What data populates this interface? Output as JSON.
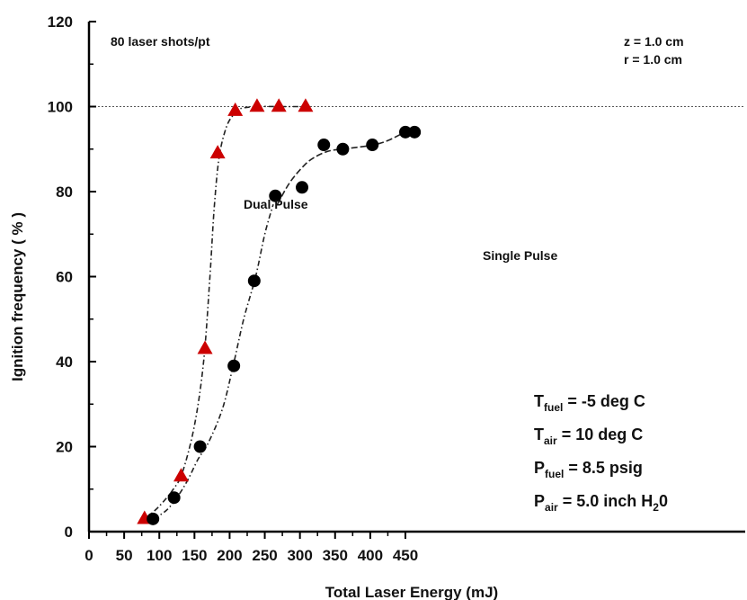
{
  "chart_data": {
    "type": "scatter",
    "xlabel": "Total Laser Energy (mJ)",
    "ylabel": "Ignition frequency ( % )",
    "xlim": [
      0,
      460
    ],
    "ylim": [
      0,
      120
    ],
    "xticks": [
      0,
      50,
      100,
      150,
      200,
      250,
      300,
      350,
      400,
      450
    ],
    "yticks": [
      0,
      20,
      40,
      60,
      80,
      100,
      120
    ],
    "grid": false,
    "reference_line": {
      "y": 100,
      "style": "dotted"
    },
    "series": [
      {
        "name": "Dual Pulse",
        "marker": "triangle",
        "color": "#cc0000",
        "x": [
          79,
          131,
          165,
          183,
          208,
          239,
          270,
          308
        ],
        "y": [
          3,
          13,
          43,
          89,
          99,
          100,
          100,
          100
        ]
      },
      {
        "name": "Single Pulse",
        "marker": "circle",
        "color": "#000000",
        "x": [
          91,
          121,
          158,
          206,
          235,
          265,
          303,
          334,
          361,
          403,
          450,
          463
        ],
        "y": [
          3,
          8,
          20,
          39,
          59,
          79,
          81,
          91,
          90,
          91,
          94,
          94
        ]
      }
    ],
    "fit_curves": [
      {
        "series": "Dual Pulse",
        "style": "dash-dot",
        "x": [
          80,
          100,
          120,
          133,
          150,
          163,
          172,
          178,
          185,
          195,
          205,
          215,
          240,
          270,
          308
        ],
        "y": [
          3,
          6,
          10,
          14,
          25,
          40,
          60,
          76,
          88,
          95,
          98,
          99.5,
          100,
          100,
          100
        ]
      },
      {
        "series": "Single Pulse",
        "style": "dash-dot",
        "x": [
          92,
          110,
          125,
          140,
          155,
          170,
          190,
          205,
          220,
          237,
          250,
          262
        ],
        "y": [
          3,
          5,
          8,
          12,
          17,
          21,
          29,
          39,
          50,
          60,
          70,
          77
        ]
      },
      {
        "series": "Single Pulse",
        "style": "dash",
        "x": [
          268,
          285,
          305,
          320,
          340,
          360,
          385,
          405,
          425,
          450,
          463
        ],
        "y": [
          77,
          82,
          86,
          88,
          89.5,
          90,
          90.5,
          91,
          92,
          94,
          94.5
        ]
      }
    ],
    "annotations": {
      "shots": "80 laser shots/pt",
      "z": "z = 1.0 cm",
      "r": "r = 1.0 cm",
      "dual_label": "Dual Pulse",
      "single_label": "Single Pulse"
    },
    "conditions": [
      {
        "var": "T",
        "sub": "fuel",
        "text": " = -5 deg C"
      },
      {
        "var": "T",
        "sub": "air",
        "text": " = 10 deg C"
      },
      {
        "var": "P",
        "sub": "fuel",
        "text": " = 8.5 psig"
      },
      {
        "var": "P",
        "sub": "air",
        "text": " = 5.0 inch H",
        "sub2": "2",
        "tail": "0"
      }
    ]
  }
}
